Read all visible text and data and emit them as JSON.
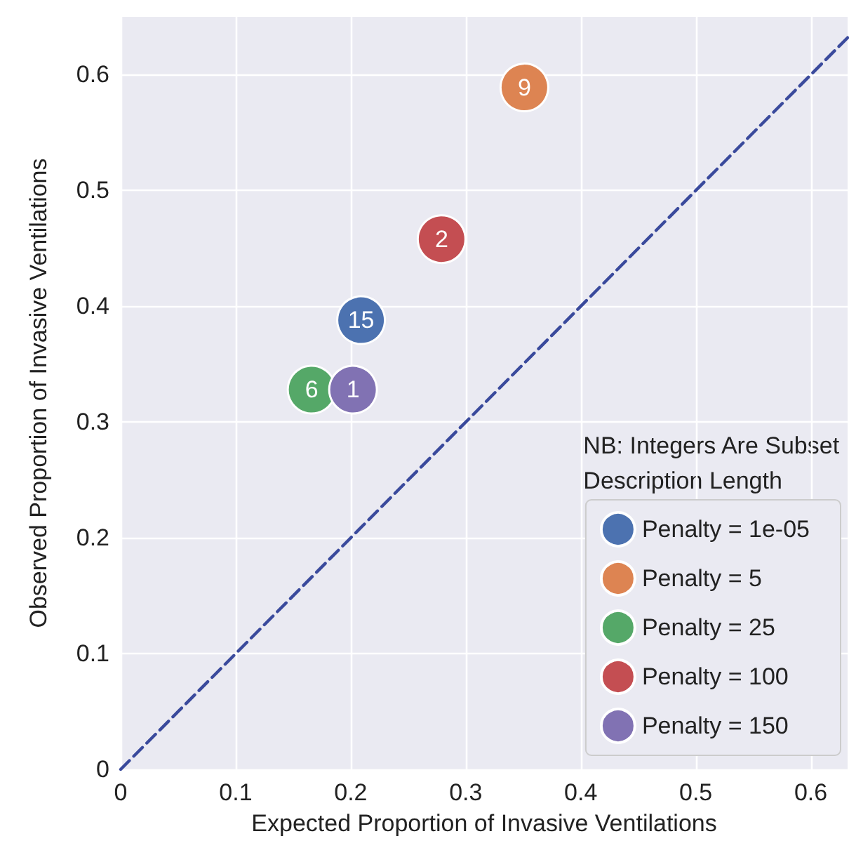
{
  "chart_data": {
    "type": "scatter",
    "xlabel": "Expected Proportion of Invasive Ventilations",
    "ylabel": "Observed Proportion of Invasive Ventilations",
    "xlim": [
      0,
      0.632
    ],
    "ylim": [
      0,
      0.65
    ],
    "xticks": [
      0,
      0.1,
      0.2,
      0.3,
      0.4,
      0.5,
      0.6
    ],
    "yticks": [
      0,
      0.1,
      0.2,
      0.3,
      0.4,
      0.5,
      0.6
    ],
    "grid": true,
    "legend": "bottom right",
    "marker": "circle",
    "annotations": [
      "NB: Integers Are Subset\nDescription Length",
      {
        "text": "15",
        "x": 0.209,
        "y": 0.388
      },
      {
        "text": "9",
        "x": 0.351,
        "y": 0.589
      },
      {
        "text": "6",
        "x": 0.166,
        "y": 0.328
      },
      {
        "text": "2",
        "x": 0.279,
        "y": 0.458
      },
      {
        "text": "1",
        "x": 0.202,
        "y": 0.328
      }
    ],
    "series": [
      {
        "name": "Penalty = 1e-05",
        "color": "#4c72b0",
        "x": [
          0.209
        ],
        "values": [
          0.388
        ]
      },
      {
        "name": "Penalty = 5",
        "color": "#dd8452",
        "x": [
          0.351
        ],
        "values": [
          0.589
        ]
      },
      {
        "name": "Penalty = 25",
        "color": "#55a868",
        "x": [
          0.166
        ],
        "values": [
          0.328
        ]
      },
      {
        "name": "Penalty = 100",
        "color": "#c44e52",
        "x": [
          0.279
        ],
        "values": [
          0.458
        ]
      },
      {
        "name": "Penalty = 150",
        "color": "#8172b3",
        "x": [
          0.202
        ],
        "values": [
          0.328
        ]
      },
      {
        "type": "line",
        "color": "#3a4a9c",
        "line_style": "dashed",
        "marker": "none",
        "x": [
          0,
          0.632
        ],
        "values": [
          0,
          0.632
        ]
      }
    ]
  }
}
